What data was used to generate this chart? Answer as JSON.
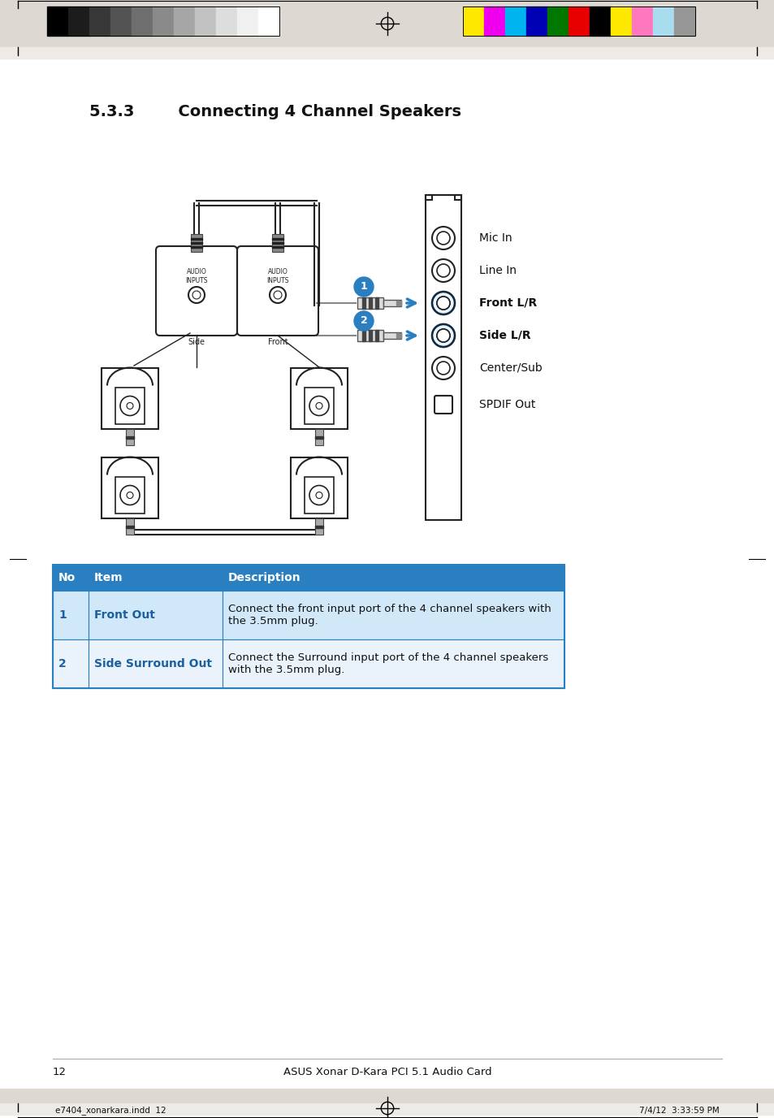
{
  "title": "5.3.3        Connecting 4 Channel Speakers",
  "title_fontsize": 14,
  "title_fontweight": "bold",
  "page_number": "12",
  "page_center_text": "ASUS Xonar D-Kara PCI 5.1 Audio Card",
  "footer_left": "e7404_xonarkara.indd  12",
  "footer_right": "7/4/12  3:33:59 PM",
  "bg_color": "#ffffff",
  "header_bar_color": "#ddd8d2",
  "table_header_color": "#2a7fc0",
  "table_header_text": "#ffffff",
  "table_row1_bg": "#ddeeff",
  "table_row2_bg": "#eef5ff",
  "table_border_color": "#2a7fc0",
  "table_data": [
    [
      "No",
      "Item",
      "Description"
    ],
    [
      "1",
      "Front Out",
      "Connect the front input port of the 4 channel speakers with\nthe 3.5mm plug."
    ],
    [
      "2",
      "Side Surround Out",
      "Connect the Surround input port of the 4 channel speakers\nwith the 3.5mm plug."
    ]
  ],
  "port_labels": [
    "Mic In",
    "Line In",
    "Front L/R",
    "Side L/R",
    "Center/Sub",
    "SPDIF Out"
  ],
  "highlight_ports": [
    2,
    3
  ],
  "color_bar_grays": [
    "#000000",
    "#1c1c1c",
    "#373737",
    "#535353",
    "#6e6e6e",
    "#8a8a8a",
    "#a6a6a6",
    "#c2c2c2",
    "#dddddd",
    "#f0f0f0",
    "#ffffff"
  ],
  "color_bar_colors": [
    "#ffe800",
    "#ee00ee",
    "#00b4f0",
    "#0000b4",
    "#007800",
    "#e80000",
    "#000000",
    "#ffe800",
    "#ff78be",
    "#aadcf0",
    "#969696"
  ]
}
